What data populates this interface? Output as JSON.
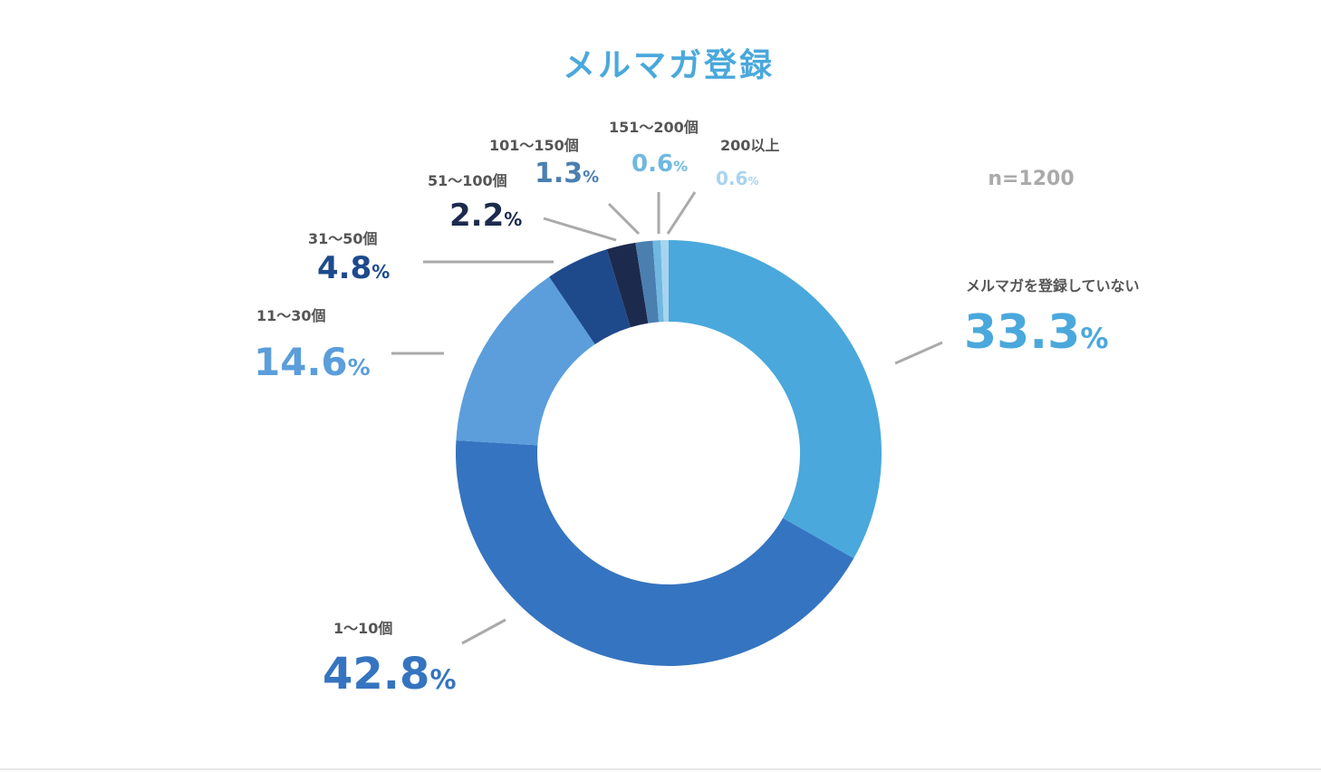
{
  "chart_data": {
    "type": "donut",
    "title": "メルマガ登録",
    "annotation": "n=1200",
    "categories": [
      "メルマガを登録していない",
      "1〜10個",
      "11〜30個",
      "31〜50個",
      "51〜100個",
      "101〜150個",
      "151〜200個",
      "200以上"
    ],
    "values": [
      33.3,
      42.8,
      14.6,
      4.8,
      2.2,
      1.3,
      0.6,
      0.6
    ],
    "value_labels": [
      "33.3%",
      "42.8%",
      "14.6%",
      "4.8%",
      "2.2%",
      "1.3%",
      "0.6%",
      "0.6%"
    ],
    "colors": [
      "#4aa8dc",
      "#3574c0",
      "#5b9edb",
      "#1e4a8c",
      "#1c2a4e",
      "#4a7fb0",
      "#6fb8e0",
      "#a8d4ef"
    ]
  }
}
